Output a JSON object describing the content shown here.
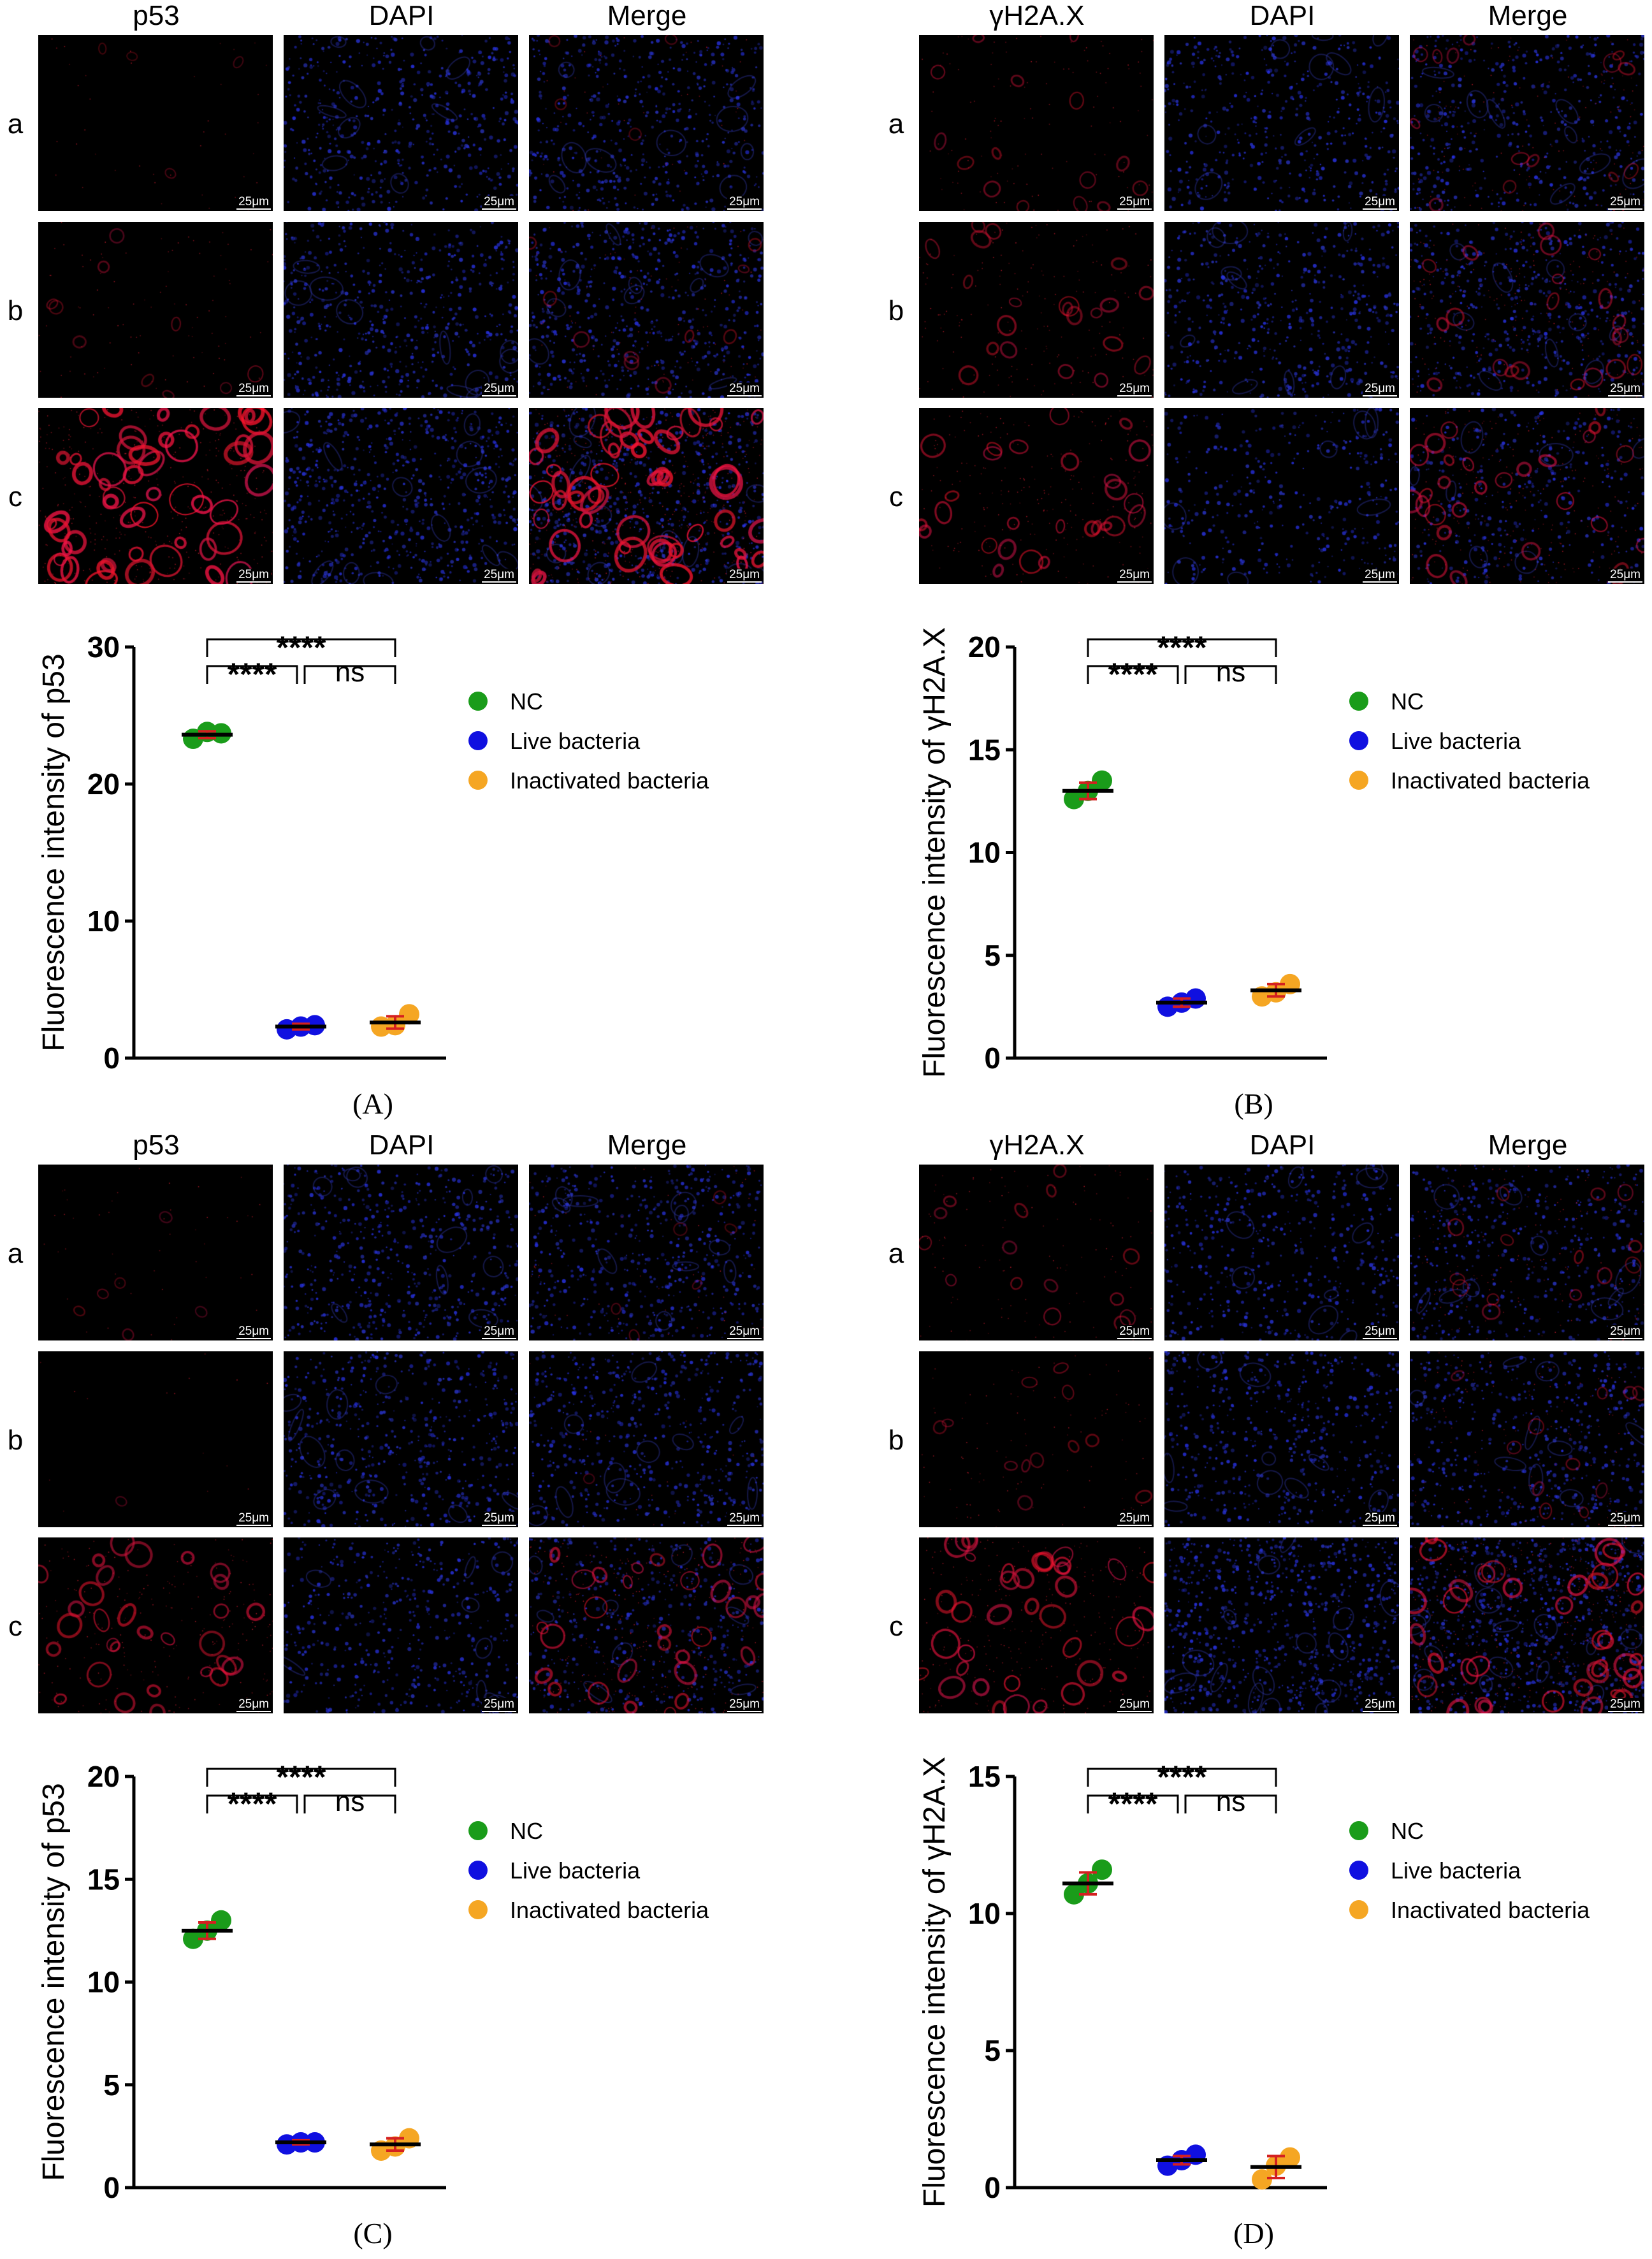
{
  "figures": [
    {
      "id": "A",
      "caption": "(A)",
      "column_headers": [
        "p53",
        "DAPI",
        "Merge"
      ],
      "row_labels": [
        "a",
        "b",
        "c"
      ],
      "scale_bar_label": "25μm",
      "row_red_levels": [
        0.08,
        0.18,
        0.85
      ],
      "row_blue_levels": [
        0.55,
        0.6,
        0.7
      ]
    },
    {
      "id": "B",
      "caption": "(B)",
      "column_headers": [
        "γH2A.X",
        "DAPI",
        "Merge"
      ],
      "row_labels": [
        "a",
        "b",
        "c"
      ],
      "scale_bar_label": "25μm",
      "row_red_levels": [
        0.25,
        0.35,
        0.45
      ],
      "row_blue_levels": [
        0.5,
        0.55,
        0.4
      ]
    },
    {
      "id": "C",
      "caption": "(C)",
      "column_headers": [
        "p53",
        "DAPI",
        "Merge"
      ],
      "row_labels": [
        "a",
        "b",
        "c"
      ],
      "scale_bar_label": "25μm",
      "row_red_levels": [
        0.1,
        0.03,
        0.5
      ],
      "row_blue_levels": [
        0.6,
        0.6,
        0.5
      ]
    },
    {
      "id": "D",
      "caption": "(D)",
      "column_headers": [
        "γH2A.X",
        "DAPI",
        "Merge"
      ],
      "row_labels": [
        "a",
        "b",
        "c"
      ],
      "scale_bar_label": "25μm",
      "row_red_levels": [
        0.25,
        0.2,
        0.6
      ],
      "row_blue_levels": [
        0.5,
        0.55,
        0.85
      ]
    }
  ],
  "legend_colors": {
    "NC": "#1a9c1a",
    "Live bacteria": "#1010e0",
    "Inactivated bacteria": "#f5a623"
  },
  "chart_data": [
    {
      "type": "scatter",
      "title": "",
      "xlabel": "",
      "ylabel": "Fluorescence intensity of p53",
      "ylim": [
        0,
        30
      ],
      "yticks": [
        0,
        10,
        20,
        30
      ],
      "grid": false,
      "legend_position": "right",
      "series": [
        {
          "name": "NC",
          "color": "#1a9c1a",
          "values": [
            23.3,
            23.7,
            23.8
          ],
          "mean": 23.6,
          "sd": 0.25
        },
        {
          "name": "Live bacteria",
          "color": "#1010e0",
          "values": [
            2.1,
            2.4,
            2.3
          ],
          "mean": 2.3,
          "sd": 0.2
        },
        {
          "name": "Inactivated bacteria",
          "color": "#f5a623",
          "values": [
            2.3,
            3.2,
            2.4
          ],
          "mean": 2.6,
          "sd": 0.45
        }
      ],
      "significance": [
        {
          "from": 0,
          "to": 1,
          "label": "****"
        },
        {
          "from": 1,
          "to": 2,
          "label": "ns"
        },
        {
          "from": 0,
          "to": 2,
          "label": "****"
        }
      ]
    },
    {
      "type": "scatter",
      "title": "",
      "xlabel": "",
      "ylabel": "Fluorescence intensity of γH2A.X",
      "ylim": [
        0,
        20
      ],
      "yticks": [
        0,
        5,
        10,
        15,
        20
      ],
      "grid": false,
      "legend_position": "right",
      "series": [
        {
          "name": "NC",
          "color": "#1a9c1a",
          "values": [
            12.6,
            13.5,
            13.0
          ],
          "mean": 13.0,
          "sd": 0.4
        },
        {
          "name": "Live bacteria",
          "color": "#1010e0",
          "values": [
            2.5,
            2.9,
            2.7
          ],
          "mean": 2.7,
          "sd": 0.2
        },
        {
          "name": "Inactivated bacteria",
          "color": "#f5a623",
          "values": [
            3.0,
            3.6,
            3.2
          ],
          "mean": 3.3,
          "sd": 0.3
        }
      ],
      "significance": [
        {
          "from": 0,
          "to": 1,
          "label": "****"
        },
        {
          "from": 1,
          "to": 2,
          "label": "ns"
        },
        {
          "from": 0,
          "to": 2,
          "label": "****"
        }
      ]
    },
    {
      "type": "scatter",
      "title": "",
      "xlabel": "",
      "ylabel": "Fluorescence intensity of p53",
      "ylim": [
        0,
        20
      ],
      "yticks": [
        0,
        5,
        10,
        15,
        20
      ],
      "grid": false,
      "legend_position": "right",
      "series": [
        {
          "name": "NC",
          "color": "#1a9c1a",
          "values": [
            12.1,
            13.0,
            12.5
          ],
          "mean": 12.5,
          "sd": 0.4
        },
        {
          "name": "Live bacteria",
          "color": "#1010e0",
          "values": [
            2.1,
            2.2,
            2.2
          ],
          "mean": 2.2,
          "sd": 0.1
        },
        {
          "name": "Inactivated bacteria",
          "color": "#f5a623",
          "values": [
            1.8,
            2.4,
            2.0
          ],
          "mean": 2.1,
          "sd": 0.3
        }
      ],
      "significance": [
        {
          "from": 0,
          "to": 1,
          "label": "****"
        },
        {
          "from": 1,
          "to": 2,
          "label": "ns"
        },
        {
          "from": 0,
          "to": 2,
          "label": "****"
        }
      ]
    },
    {
      "type": "scatter",
      "title": "",
      "xlabel": "",
      "ylabel": "Fluorescence intensity of γH2A.X",
      "ylim": [
        0,
        15
      ],
      "yticks": [
        0,
        5,
        10,
        15
      ],
      "grid": false,
      "legend_position": "right",
      "series": [
        {
          "name": "NC",
          "color": "#1a9c1a",
          "values": [
            10.7,
            11.6,
            11.1
          ],
          "mean": 11.1,
          "sd": 0.4
        },
        {
          "name": "Live bacteria",
          "color": "#1010e0",
          "values": [
            0.8,
            1.2,
            1.0
          ],
          "mean": 1.0,
          "sd": 0.15
        },
        {
          "name": "Inactivated bacteria",
          "color": "#f5a623",
          "values": [
            0.3,
            1.1,
            0.8
          ],
          "mean": 0.75,
          "sd": 0.4
        }
      ],
      "significance": [
        {
          "from": 0,
          "to": 1,
          "label": "****"
        },
        {
          "from": 1,
          "to": 2,
          "label": "ns"
        },
        {
          "from": 0,
          "to": 2,
          "label": "****"
        }
      ]
    }
  ]
}
